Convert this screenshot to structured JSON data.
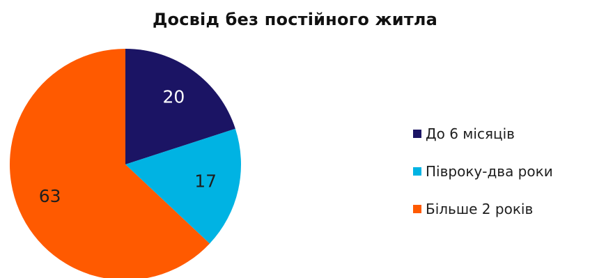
{
  "chart_data": {
    "type": "pie",
    "title": "Досвід без постійного житла",
    "categories": [
      "До 6 місяців",
      "Півроку-два роки",
      "Більше 2 років"
    ],
    "values": [
      20,
      17,
      63
    ],
    "data_labels": [
      "20",
      "17",
      "63"
    ],
    "colors": [
      "#1b1464",
      "#00b3e3",
      "#ff5a00"
    ],
    "label_colors": [
      "#ffffff",
      "#1e1e1e",
      "#1e1e1e"
    ],
    "legend_position": "right"
  }
}
